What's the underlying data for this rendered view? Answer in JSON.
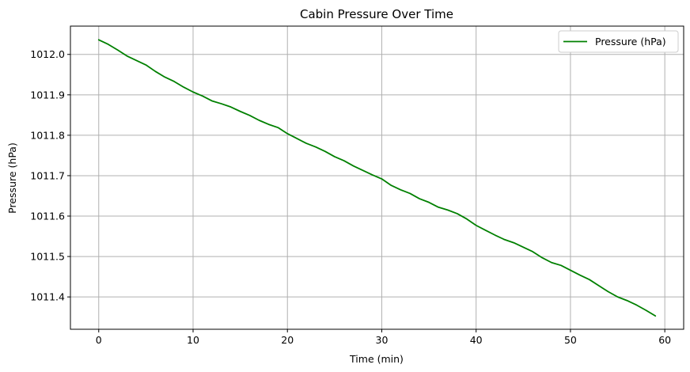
{
  "chart_data": {
    "type": "line",
    "title": "Cabin Pressure Over Time",
    "xlabel": "Time (min)",
    "ylabel": "Pressure (hPa)",
    "xlim": [
      -3,
      62
    ],
    "ylim": [
      1011.32,
      1012.07
    ],
    "xticks": [
      0,
      10,
      20,
      30,
      40,
      50,
      60
    ],
    "xtick_labels": [
      "0",
      "10",
      "20",
      "30",
      "40",
      "50",
      "60"
    ],
    "yticks": [
      1011.4,
      1011.5,
      1011.6,
      1011.7,
      1011.8,
      1011.9,
      1012.0
    ],
    "ytick_labels": [
      "1011.4",
      "1011.5",
      "1011.6",
      "1011.7",
      "1011.8",
      "1011.9",
      "1012.0"
    ],
    "grid": true,
    "legend_position": "top-right",
    "series": [
      {
        "name": "Pressure (hPa)",
        "color": "#008000",
        "x": [
          0,
          1,
          2,
          3,
          4,
          5,
          6,
          7,
          8,
          9,
          10,
          11,
          12,
          13,
          14,
          15,
          16,
          17,
          18,
          19,
          20,
          21,
          22,
          23,
          24,
          25,
          26,
          27,
          28,
          29,
          30,
          31,
          32,
          33,
          34,
          35,
          36,
          37,
          38,
          39,
          40,
          41,
          42,
          43,
          44,
          45,
          46,
          47,
          48,
          49,
          50,
          51,
          52,
          53,
          54,
          55,
          56,
          57,
          58,
          59
        ],
        "values": [
          1012.036,
          1012.025,
          1012.011,
          1011.996,
          1011.985,
          1011.974,
          1011.958,
          1011.944,
          1011.933,
          1011.919,
          1011.907,
          1011.897,
          1011.885,
          1011.878,
          1011.87,
          1011.859,
          1011.849,
          1011.837,
          1011.827,
          1011.819,
          1011.804,
          1011.792,
          1011.78,
          1011.771,
          1011.76,
          1011.747,
          1011.737,
          1011.724,
          1011.713,
          1011.702,
          1011.692,
          1011.676,
          1011.665,
          1011.656,
          1011.643,
          1011.634,
          1011.622,
          1011.615,
          1011.606,
          1011.593,
          1011.577,
          1011.565,
          1011.553,
          1011.542,
          1011.534,
          1011.523,
          1011.512,
          1011.497,
          1011.485,
          1011.478,
          1011.466,
          1011.454,
          1011.443,
          1011.428,
          1011.413,
          1011.4,
          1011.391,
          1011.38,
          1011.367,
          1011.353
        ]
      }
    ]
  }
}
